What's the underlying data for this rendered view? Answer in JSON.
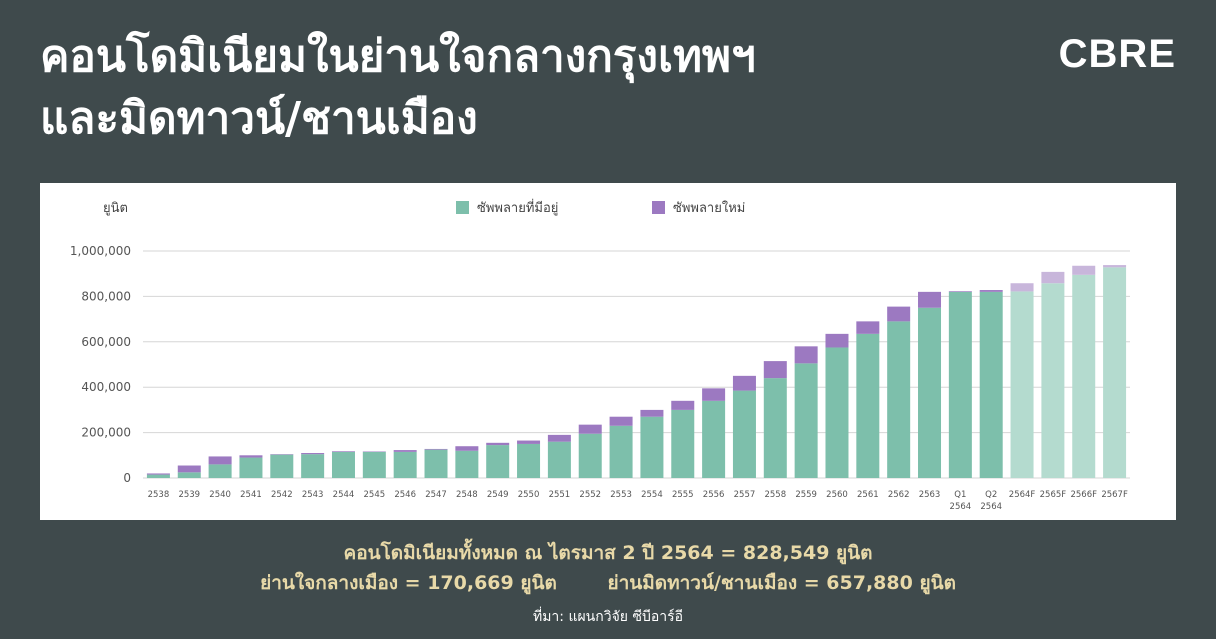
{
  "title_line1": "คอนโดมิเนียมในย่านใจกลางกรุงเทพฯ",
  "title_line2": "และมิดทาวน์/ชานเมือง",
  "brand": "CBRE",
  "summary": {
    "total": "คอนโดมิเนียมทั้งหมด ณ ไตรมาส 2 ปี 2564 = 828,549 ยูนิต",
    "cbd": "ย่านใจกลางเมือง = 170,669 ยูนิต",
    "midtown": "ย่านมิดทาวน์/ชานเมือง = 657,880 ยูนิต"
  },
  "source": "ที่มา: แผนกวิจัย ซีบีอาร์อี",
  "chart_data": {
    "type": "bar",
    "stacked": true,
    "ylabel": "ยูนิต",
    "ylim": [
      0,
      1000000
    ],
    "yticks": [
      0,
      200000,
      400000,
      600000,
      800000,
      1000000
    ],
    "ytick_labels": [
      "0",
      "200,000",
      "400,000",
      "600,000",
      "800,000",
      "1,000,000"
    ],
    "grid": true,
    "legend_position": "top-center",
    "categories": [
      "2538",
      "2539",
      "2540",
      "2541",
      "2542",
      "2543",
      "2544",
      "2545",
      "2546",
      "2547",
      "2548",
      "2549",
      "2550",
      "2551",
      "2552",
      "2553",
      "2554",
      "2555",
      "2556",
      "2557",
      "2558",
      "2559",
      "2560",
      "2561",
      "2562",
      "2563",
      "Q1 2564",
      "Q2 2564",
      "2564F",
      "2565F",
      "2566F",
      "2567F"
    ],
    "forecast_from_index": 28,
    "series": [
      {
        "name": "ซัพพลายที่มีอยู่",
        "color": "#7dbfab",
        "forecast_color": "#b4dbcf",
        "values": [
          15000,
          25000,
          60000,
          90000,
          103000,
          105000,
          115000,
          115000,
          115000,
          125000,
          120000,
          145000,
          150000,
          160000,
          195000,
          230000,
          270000,
          300000,
          340000,
          385000,
          440000,
          505000,
          575000,
          635000,
          690000,
          750000,
          820000,
          820000,
          822000,
          858000,
          895000,
          928000
        ]
      },
      {
        "name": "ซัพพลายใหม่",
        "color": "#9c79c1",
        "forecast_color": "#c8b6db",
        "values": [
          5000,
          30000,
          35000,
          10000,
          2000,
          5000,
          3000,
          2000,
          8000,
          3000,
          20000,
          10000,
          15000,
          30000,
          40000,
          40000,
          30000,
          40000,
          55000,
          65000,
          75000,
          75000,
          60000,
          55000,
          65000,
          70000,
          3000,
          8000,
          36000,
          50000,
          40000,
          10000
        ]
      }
    ]
  }
}
